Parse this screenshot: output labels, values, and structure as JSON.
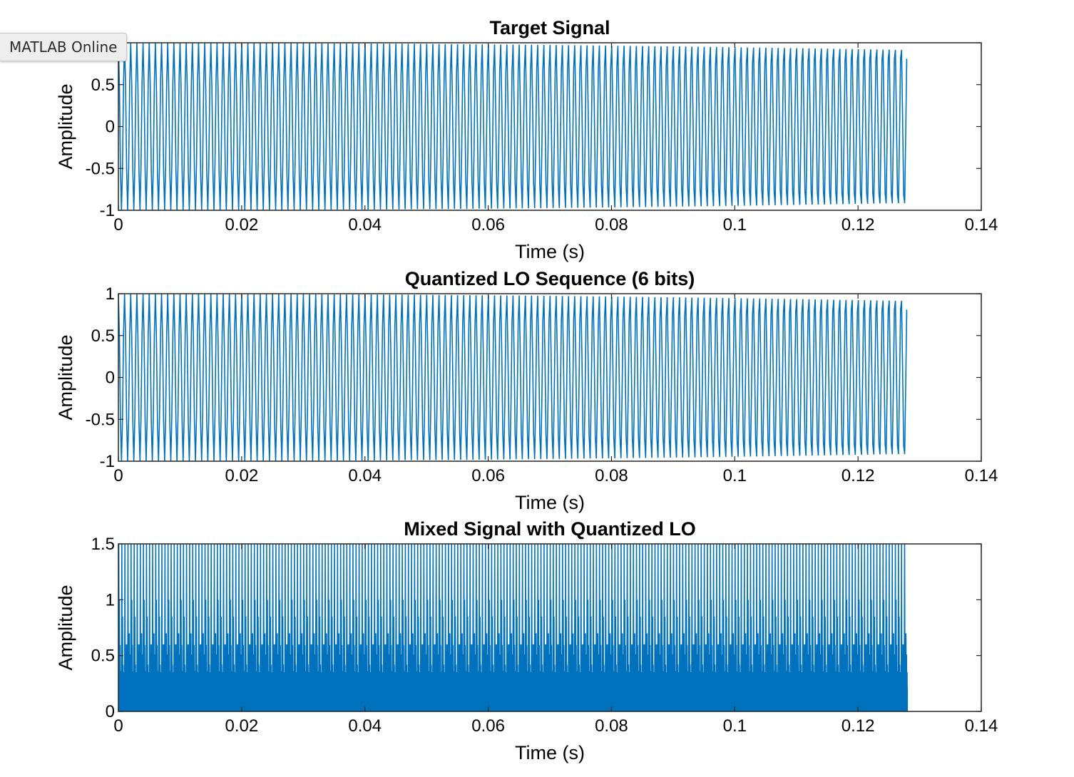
{
  "badge": {
    "label": "MATLAB Online"
  },
  "colors": {
    "line": "#0072BD",
    "axes": "#262626",
    "background": "#ffffff"
  },
  "chart_data": [
    {
      "type": "line",
      "title": "Target Signal",
      "xlabel": "Time (s)",
      "ylabel": "Amplitude",
      "xlim": [
        0,
        0.14
      ],
      "ylim": [
        -1,
        1
      ],
      "xticks": [
        0,
        0.02,
        0.04,
        0.06,
        0.08,
        0.1,
        0.12,
        0.14
      ],
      "xticklabels": [
        "0",
        "0.02",
        "0.04",
        "0.06",
        "0.08",
        "0.1",
        "0.12",
        "0.14"
      ],
      "yticks": [
        -1,
        -0.5,
        0,
        0.5,
        1
      ],
      "yticklabels": [
        "-1",
        "-0.5",
        "0",
        "0.5",
        ""
      ],
      "grid": false,
      "series": [
        {
          "signal": "sinusoid",
          "amplitude": 1,
          "frequency_hz": 1000,
          "x_start": 0,
          "x_end": 0.1279,
          "end_value": 0.7
        }
      ]
    },
    {
      "type": "line",
      "title": "Quantized LO Sequence (6 bits)",
      "xlabel": "Time (s)",
      "ylabel": "Amplitude",
      "xlim": [
        0,
        0.14
      ],
      "ylim": [
        -1,
        1
      ],
      "xticks": [
        0,
        0.02,
        0.04,
        0.06,
        0.08,
        0.1,
        0.12,
        0.14
      ],
      "xticklabels": [
        "0",
        "0.02",
        "0.04",
        "0.06",
        "0.08",
        "0.1",
        "0.12",
        "0.14"
      ],
      "yticks": [
        -1,
        -0.5,
        0,
        0.5,
        1
      ],
      "yticklabels": [
        "-1",
        "-0.5",
        "0",
        "0.5",
        "1"
      ],
      "grid": false,
      "series": [
        {
          "signal": "sinusoid",
          "amplitude": 1,
          "frequency_hz": 1000,
          "x_start": 0,
          "x_end": 0.1279,
          "end_value": 0.7
        }
      ]
    },
    {
      "type": "line",
      "title": "Mixed Signal with Quantized LO",
      "xlabel": "Time (s)",
      "ylabel": "Amplitude",
      "xlim": [
        0,
        0.14
      ],
      "ylim": [
        0,
        1.5
      ],
      "xticks": [
        0,
        0.02,
        0.04,
        0.06,
        0.08,
        0.1,
        0.12,
        0.14
      ],
      "xticklabels": [
        "0",
        "0.02",
        "0.04",
        "0.06",
        "0.08",
        "0.1",
        "0.12",
        "0.14"
      ],
      "yticks": [
        0,
        0.5,
        1,
        1.5
      ],
      "yticklabels": [
        "0",
        "0.5",
        "1",
        "1.5"
      ],
      "grid": false,
      "series": [
        {
          "signal": "mixed-envelope",
          "peak": 1.5,
          "min": 0,
          "pulses_per_ms": 2,
          "secondary_peaks": [
            1.0,
            0.85,
            0.6,
            0.5
          ],
          "x_start": 0,
          "x_end": 0.128,
          "end_value": 0.2
        }
      ]
    }
  ]
}
